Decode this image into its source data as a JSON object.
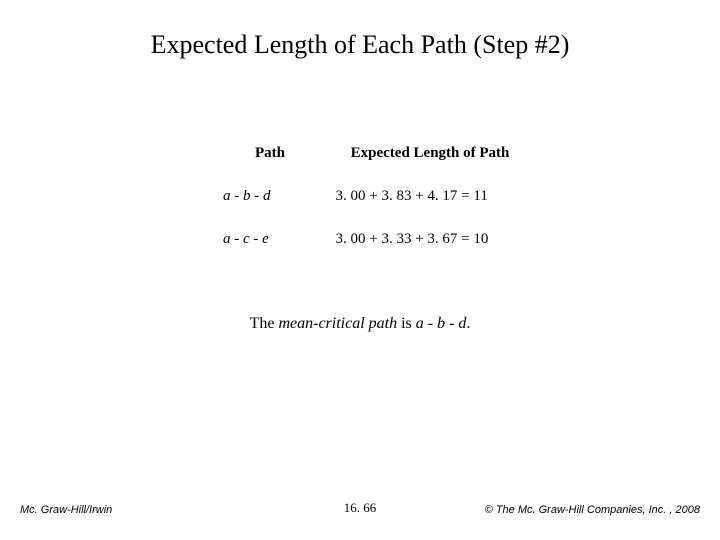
{
  "title": "Expected Length of Each Path (Step #2)",
  "table": {
    "headers": {
      "path": "Path",
      "len": "Expected Length of Path"
    },
    "rows": [
      {
        "path": "a - b - d",
        "len": "3. 00 + 3. 83 + 4. 17 = 11"
      },
      {
        "path": "a - c - e",
        "len": "3. 00 + 3. 33 + 3. 67 = 10"
      }
    ]
  },
  "statement": {
    "prefix": "The ",
    "mc": "mean-critical path",
    "mid": " is ",
    "abd": "a - b - d",
    "suffix": "."
  },
  "footer": {
    "left": "Mc. Graw-Hill/Irwin",
    "center": "16. 66",
    "right": "© The Mc. Graw-Hill Companies, Inc. , 2008"
  },
  "style": {
    "background_color": "#ffffff",
    "text_color": "#000000",
    "title_fontsize": 26,
    "body_fontsize": 15,
    "footer_fontsize": 11
  }
}
